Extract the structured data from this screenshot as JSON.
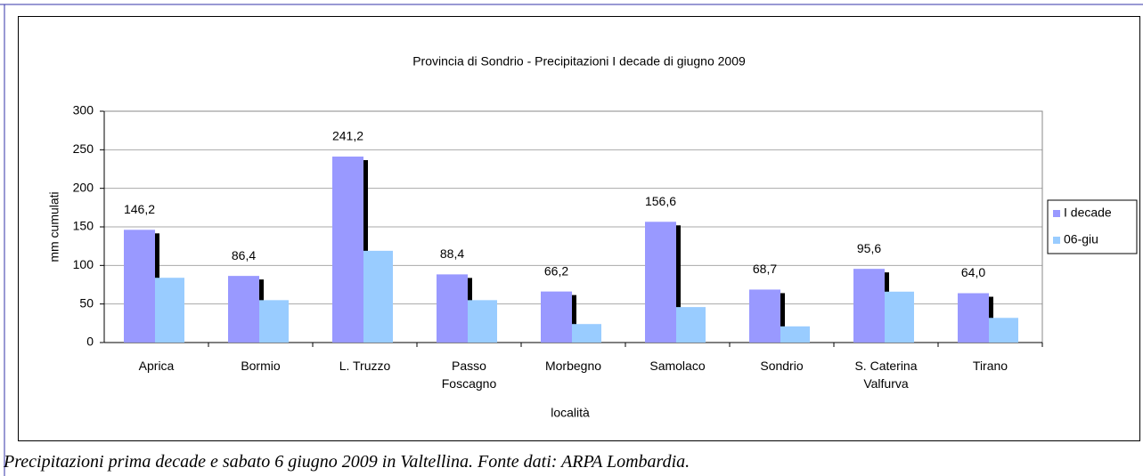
{
  "chart_data": {
    "type": "bar",
    "title": "Provincia di Sondrio - Precipitazioni I decade di giugno 2009",
    "x_label": "località",
    "y_label": "mm cumulati",
    "categories": [
      "Aprica",
      "Bormio",
      "L. Truzzo",
      "Passo\nFoscagno",
      "Morbegno",
      "Samolaco",
      "Sondrio",
      "S. Caterina\nValfurva",
      "Tirano"
    ],
    "series": [
      {
        "name": "I decade",
        "color": "#9999ff",
        "values": [
          146.2,
          86.4,
          241.2,
          88.4,
          66.2,
          156.6,
          68.7,
          95.6,
          64.0
        ],
        "value_labels": [
          "146,2",
          "86,4",
          "241,2",
          "88,4",
          "66,2",
          "156,6",
          "68,7",
          "95,6",
          "64,0"
        ]
      },
      {
        "name": "06-giu",
        "color": "#99ccff",
        "values": [
          84,
          55,
          119,
          55,
          24,
          46,
          21,
          66,
          32
        ]
      }
    ],
    "ylim": [
      0,
      300
    ],
    "yticks": [
      0,
      50,
      100,
      150,
      200,
      250,
      300
    ],
    "grid": true,
    "legend": "right"
  },
  "caption": "Precipitazioni prima decade e sabato 6 giugno 2009 in Valtellina. Fonte dati: ARPA Lombardia."
}
